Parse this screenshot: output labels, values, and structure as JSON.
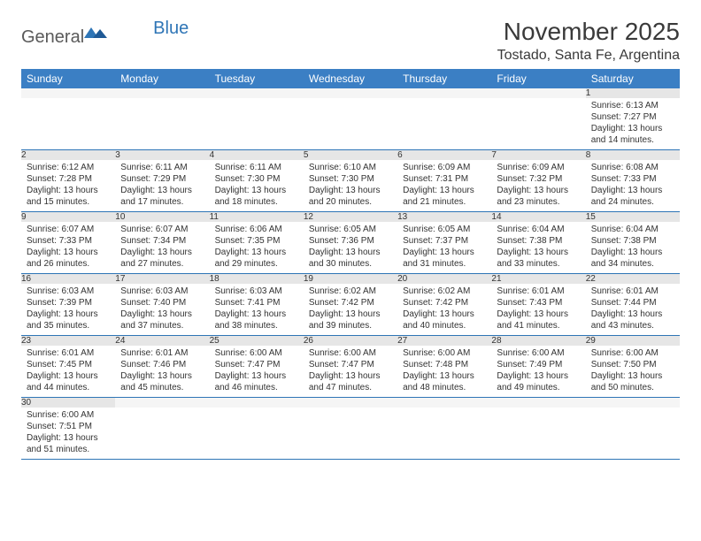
{
  "logo": {
    "text1": "General",
    "text2": "Blue"
  },
  "title": "November 2025",
  "location": "Tostado, Santa Fe, Argentina",
  "colors": {
    "header_bg": "#3b7fc4",
    "header_fg": "#ffffff",
    "daynum_bg": "#e6e6e6",
    "border": "#2e75b6",
    "logo_gray": "#5a5a5a",
    "logo_blue": "#2e75b6"
  },
  "day_headers": [
    "Sunday",
    "Monday",
    "Tuesday",
    "Wednesday",
    "Thursday",
    "Friday",
    "Saturday"
  ],
  "weeks": [
    [
      null,
      null,
      null,
      null,
      null,
      null,
      {
        "n": "1",
        "sr": "Sunrise: 6:13 AM",
        "ss": "Sunset: 7:27 PM",
        "d1": "Daylight: 13 hours",
        "d2": "and 14 minutes."
      }
    ],
    [
      {
        "n": "2",
        "sr": "Sunrise: 6:12 AM",
        "ss": "Sunset: 7:28 PM",
        "d1": "Daylight: 13 hours",
        "d2": "and 15 minutes."
      },
      {
        "n": "3",
        "sr": "Sunrise: 6:11 AM",
        "ss": "Sunset: 7:29 PM",
        "d1": "Daylight: 13 hours",
        "d2": "and 17 minutes."
      },
      {
        "n": "4",
        "sr": "Sunrise: 6:11 AM",
        "ss": "Sunset: 7:30 PM",
        "d1": "Daylight: 13 hours",
        "d2": "and 18 minutes."
      },
      {
        "n": "5",
        "sr": "Sunrise: 6:10 AM",
        "ss": "Sunset: 7:30 PM",
        "d1": "Daylight: 13 hours",
        "d2": "and 20 minutes."
      },
      {
        "n": "6",
        "sr": "Sunrise: 6:09 AM",
        "ss": "Sunset: 7:31 PM",
        "d1": "Daylight: 13 hours",
        "d2": "and 21 minutes."
      },
      {
        "n": "7",
        "sr": "Sunrise: 6:09 AM",
        "ss": "Sunset: 7:32 PM",
        "d1": "Daylight: 13 hours",
        "d2": "and 23 minutes."
      },
      {
        "n": "8",
        "sr": "Sunrise: 6:08 AM",
        "ss": "Sunset: 7:33 PM",
        "d1": "Daylight: 13 hours",
        "d2": "and 24 minutes."
      }
    ],
    [
      {
        "n": "9",
        "sr": "Sunrise: 6:07 AM",
        "ss": "Sunset: 7:33 PM",
        "d1": "Daylight: 13 hours",
        "d2": "and 26 minutes."
      },
      {
        "n": "10",
        "sr": "Sunrise: 6:07 AM",
        "ss": "Sunset: 7:34 PM",
        "d1": "Daylight: 13 hours",
        "d2": "and 27 minutes."
      },
      {
        "n": "11",
        "sr": "Sunrise: 6:06 AM",
        "ss": "Sunset: 7:35 PM",
        "d1": "Daylight: 13 hours",
        "d2": "and 29 minutes."
      },
      {
        "n": "12",
        "sr": "Sunrise: 6:05 AM",
        "ss": "Sunset: 7:36 PM",
        "d1": "Daylight: 13 hours",
        "d2": "and 30 minutes."
      },
      {
        "n": "13",
        "sr": "Sunrise: 6:05 AM",
        "ss": "Sunset: 7:37 PM",
        "d1": "Daylight: 13 hours",
        "d2": "and 31 minutes."
      },
      {
        "n": "14",
        "sr": "Sunrise: 6:04 AM",
        "ss": "Sunset: 7:38 PM",
        "d1": "Daylight: 13 hours",
        "d2": "and 33 minutes."
      },
      {
        "n": "15",
        "sr": "Sunrise: 6:04 AM",
        "ss": "Sunset: 7:38 PM",
        "d1": "Daylight: 13 hours",
        "d2": "and 34 minutes."
      }
    ],
    [
      {
        "n": "16",
        "sr": "Sunrise: 6:03 AM",
        "ss": "Sunset: 7:39 PM",
        "d1": "Daylight: 13 hours",
        "d2": "and 35 minutes."
      },
      {
        "n": "17",
        "sr": "Sunrise: 6:03 AM",
        "ss": "Sunset: 7:40 PM",
        "d1": "Daylight: 13 hours",
        "d2": "and 37 minutes."
      },
      {
        "n": "18",
        "sr": "Sunrise: 6:03 AM",
        "ss": "Sunset: 7:41 PM",
        "d1": "Daylight: 13 hours",
        "d2": "and 38 minutes."
      },
      {
        "n": "19",
        "sr": "Sunrise: 6:02 AM",
        "ss": "Sunset: 7:42 PM",
        "d1": "Daylight: 13 hours",
        "d2": "and 39 minutes."
      },
      {
        "n": "20",
        "sr": "Sunrise: 6:02 AM",
        "ss": "Sunset: 7:42 PM",
        "d1": "Daylight: 13 hours",
        "d2": "and 40 minutes."
      },
      {
        "n": "21",
        "sr": "Sunrise: 6:01 AM",
        "ss": "Sunset: 7:43 PM",
        "d1": "Daylight: 13 hours",
        "d2": "and 41 minutes."
      },
      {
        "n": "22",
        "sr": "Sunrise: 6:01 AM",
        "ss": "Sunset: 7:44 PM",
        "d1": "Daylight: 13 hours",
        "d2": "and 43 minutes."
      }
    ],
    [
      {
        "n": "23",
        "sr": "Sunrise: 6:01 AM",
        "ss": "Sunset: 7:45 PM",
        "d1": "Daylight: 13 hours",
        "d2": "and 44 minutes."
      },
      {
        "n": "24",
        "sr": "Sunrise: 6:01 AM",
        "ss": "Sunset: 7:46 PM",
        "d1": "Daylight: 13 hours",
        "d2": "and 45 minutes."
      },
      {
        "n": "25",
        "sr": "Sunrise: 6:00 AM",
        "ss": "Sunset: 7:47 PM",
        "d1": "Daylight: 13 hours",
        "d2": "and 46 minutes."
      },
      {
        "n": "26",
        "sr": "Sunrise: 6:00 AM",
        "ss": "Sunset: 7:47 PM",
        "d1": "Daylight: 13 hours",
        "d2": "and 47 minutes."
      },
      {
        "n": "27",
        "sr": "Sunrise: 6:00 AM",
        "ss": "Sunset: 7:48 PM",
        "d1": "Daylight: 13 hours",
        "d2": "and 48 minutes."
      },
      {
        "n": "28",
        "sr": "Sunrise: 6:00 AM",
        "ss": "Sunset: 7:49 PM",
        "d1": "Daylight: 13 hours",
        "d2": "and 49 minutes."
      },
      {
        "n": "29",
        "sr": "Sunrise: 6:00 AM",
        "ss": "Sunset: 7:50 PM",
        "d1": "Daylight: 13 hours",
        "d2": "and 50 minutes."
      }
    ],
    [
      {
        "n": "30",
        "sr": "Sunrise: 6:00 AM",
        "ss": "Sunset: 7:51 PM",
        "d1": "Daylight: 13 hours",
        "d2": "and 51 minutes."
      },
      null,
      null,
      null,
      null,
      null,
      null
    ]
  ]
}
